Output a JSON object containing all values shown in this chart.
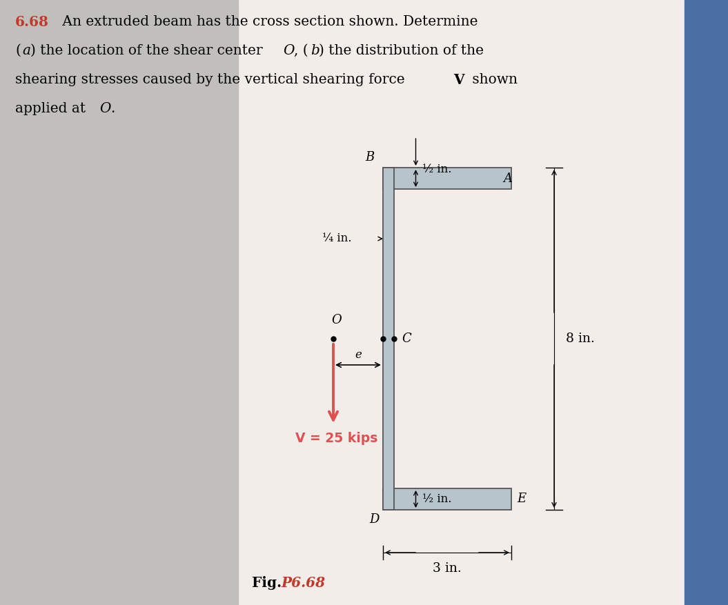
{
  "bg_color": "#f2ede8",
  "text_color_problem": "#c0392b",
  "problem_number": "6.68",
  "cross_section_color": "#b8c4cc",
  "cross_section_edge": "#555555",
  "arrow_color": "#e05050",
  "V_text": "V = 25 kips",
  "e_text": "e",
  "half_in_top": "½ in.",
  "quarter_in": "¼ in.",
  "half_in_mid": "½ in.",
  "eight_in": "8 in.",
  "three_in": "3 in.",
  "panel_left_color": "#c0bfbc",
  "panel_right_color": "#4a6fa5",
  "fig_text": "Fig. ",
  "fig_p_text": "P6.68"
}
